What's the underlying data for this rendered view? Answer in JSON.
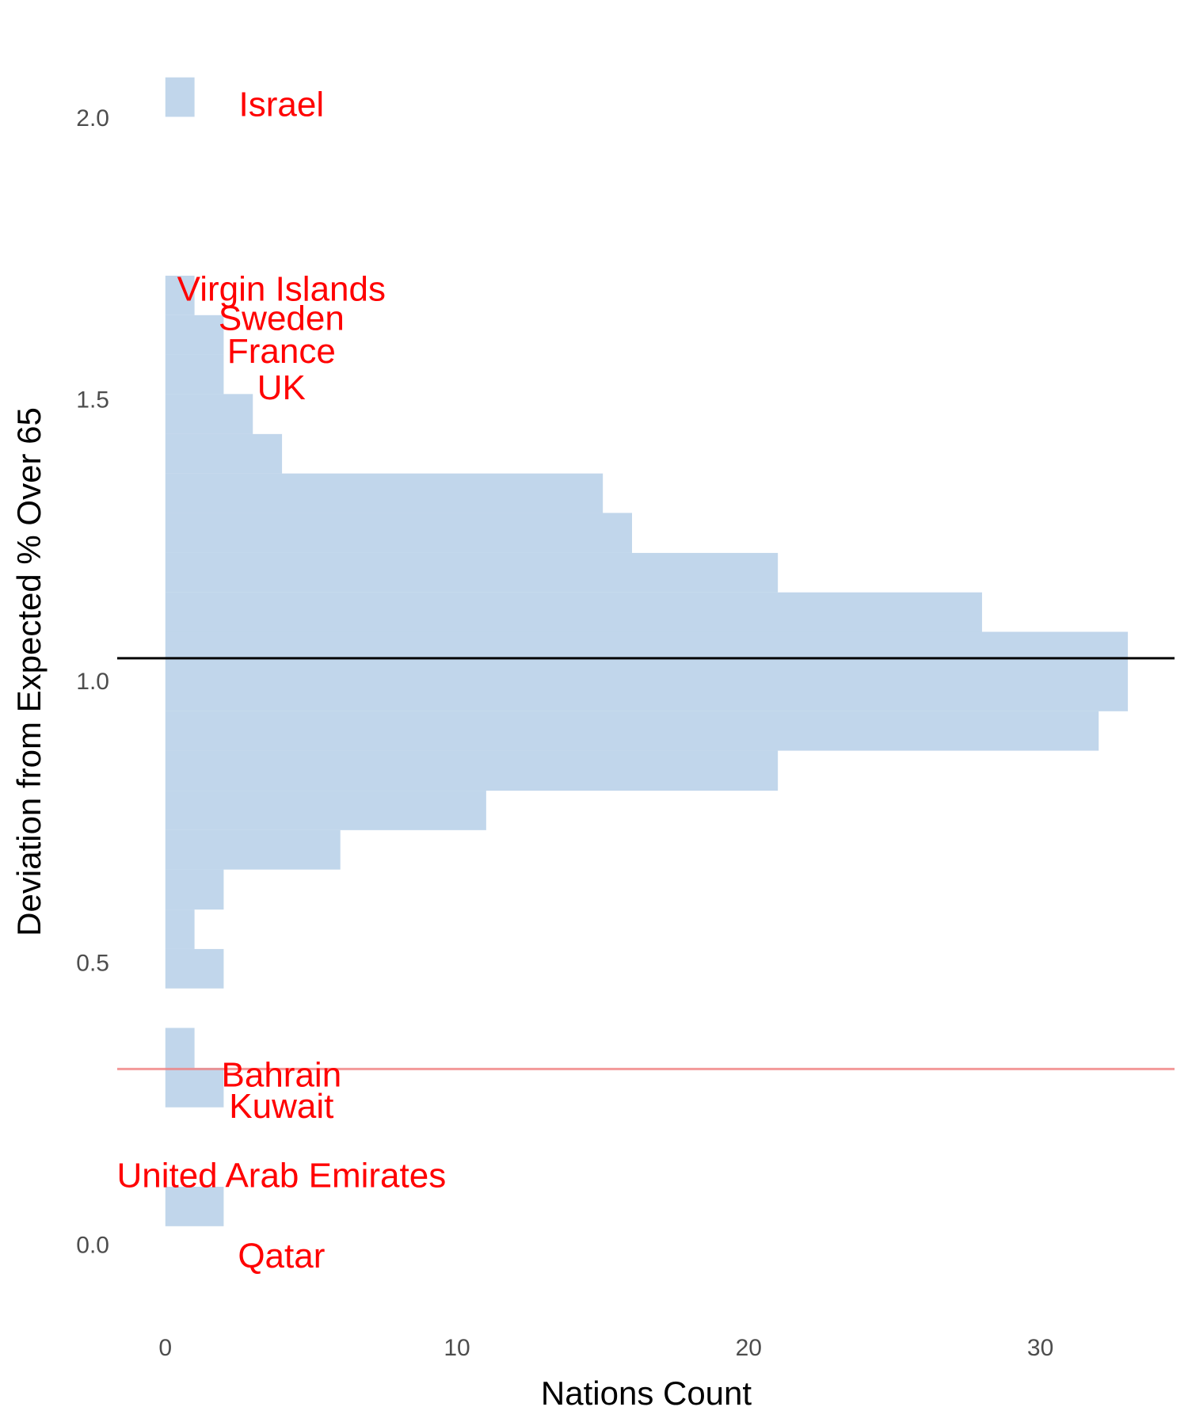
{
  "chart_data": {
    "type": "histogram",
    "orientation": "horizontal",
    "x_label": "Nations Count",
    "y_label": "Deviation from Expected % Over 65",
    "bins": [
      0.036,
      0.106,
      0.177,
      0.247,
      0.317,
      0.388,
      0.458,
      0.528,
      0.598,
      0.669,
      0.739,
      0.809,
      0.88,
      0.95,
      1.02,
      1.091,
      1.161,
      1.231,
      1.302,
      1.372,
      1.442,
      1.513,
      1.583,
      1.653,
      1.723,
      1.794,
      1.864,
      1.934,
      2.005,
      2.075
    ],
    "counts": [
      2,
      0,
      0,
      2,
      1,
      0,
      2,
      1,
      2,
      6,
      11,
      21,
      32,
      33,
      33,
      28,
      21,
      16,
      15,
      4,
      3,
      2,
      2,
      1,
      0,
      0,
      0,
      0,
      1
    ],
    "color": "#a6c4e2",
    "xlim": [
      -1.65,
      34.6
    ],
    "ylim": [
      -0.14,
      2.18
    ],
    "xticks": [
      0,
      10,
      20,
      30
    ],
    "yticks": [
      {
        "value": 0,
        "label": "0.0"
      },
      0.5,
      {
        "value": 1,
        "label": "1.0"
      },
      1.5,
      {
        "value": 2,
        "label": "2.0"
      }
    ],
    "x_minor_grid": [
      5,
      15,
      25
    ],
    "y_minor_grid": [
      0.25,
      0.75,
      1.25,
      1.75
    ],
    "grid": true,
    "hlines": [
      {
        "value": 1.044,
        "color": "#000000"
      },
      {
        "value": 0.315,
        "color": "#f08080"
      }
    ],
    "annotation_color": "#ff0000",
    "annotations": [
      {
        "text": "Israel",
        "x": 3.98,
        "y": 2.023
      },
      {
        "text": "Virgin Islands",
        "x": 3.98,
        "y": 1.695
      },
      {
        "text": "Sweden",
        "x": 3.98,
        "y": 1.643
      },
      {
        "text": "France",
        "x": 3.98,
        "y": 1.585
      },
      {
        "text": "UK",
        "x": 3.98,
        "y": 1.52
      },
      {
        "text": "Bahrain",
        "x": 3.98,
        "y": 0.3
      },
      {
        "text": "Kuwait",
        "x": 3.98,
        "y": 0.245
      },
      {
        "text": "United Arab Emirates",
        "x": 3.98,
        "y": 0.122
      },
      {
        "text": "Qatar",
        "x": 3.98,
        "y": -0.021
      }
    ]
  }
}
